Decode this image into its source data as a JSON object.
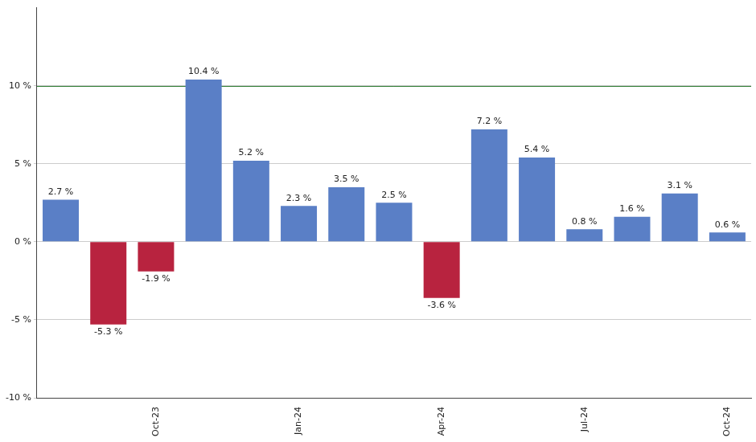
{
  "chart_data": {
    "type": "bar",
    "categories": [
      null,
      null,
      "Oct-23",
      null,
      null,
      "Jan-24",
      null,
      null,
      "Apr-24",
      null,
      null,
      "Jul-24",
      null,
      null,
      "Oct-24"
    ],
    "values": [
      2.7,
      -5.3,
      -1.9,
      10.4,
      5.2,
      2.3,
      3.5,
      2.5,
      -3.6,
      7.2,
      5.4,
      0.8,
      1.6,
      3.1,
      0.6
    ],
    "value_labels": [
      "2.7 %",
      "-5.3 %",
      "-1.9 %",
      "10.4 %",
      "5.2 %",
      "2.3 %",
      "3.5 %",
      "2.5 %",
      "-3.6 %",
      "7.2 %",
      "5.4 %",
      "0.8 %",
      "1.6 %",
      "3.1 %",
      "0.6 %"
    ],
    "colors": [
      "#5a7fc6",
      "#b8233f",
      "#b8233f",
      "#5a7fc6",
      "#5a7fc6",
      "#5a7fc6",
      "#5a7fc6",
      "#5a7fc6",
      "#b8233f",
      "#5a7fc6",
      "#5a7fc6",
      "#5a7fc6",
      "#5a7fc6",
      "#5a7fc6",
      "#5a7fc6"
    ],
    "ylim": [
      -10,
      15
    ],
    "yticks": [
      {
        "value": -10,
        "label": "-10 %"
      },
      {
        "value": -5,
        "label": "-5 %"
      },
      {
        "value": 0,
        "label": "0 %"
      },
      {
        "value": 5,
        "label": "5 %"
      },
      {
        "value": 10,
        "label": "10 %"
      }
    ],
    "reference_line": 10,
    "grid": true,
    "data_labels": true
  }
}
